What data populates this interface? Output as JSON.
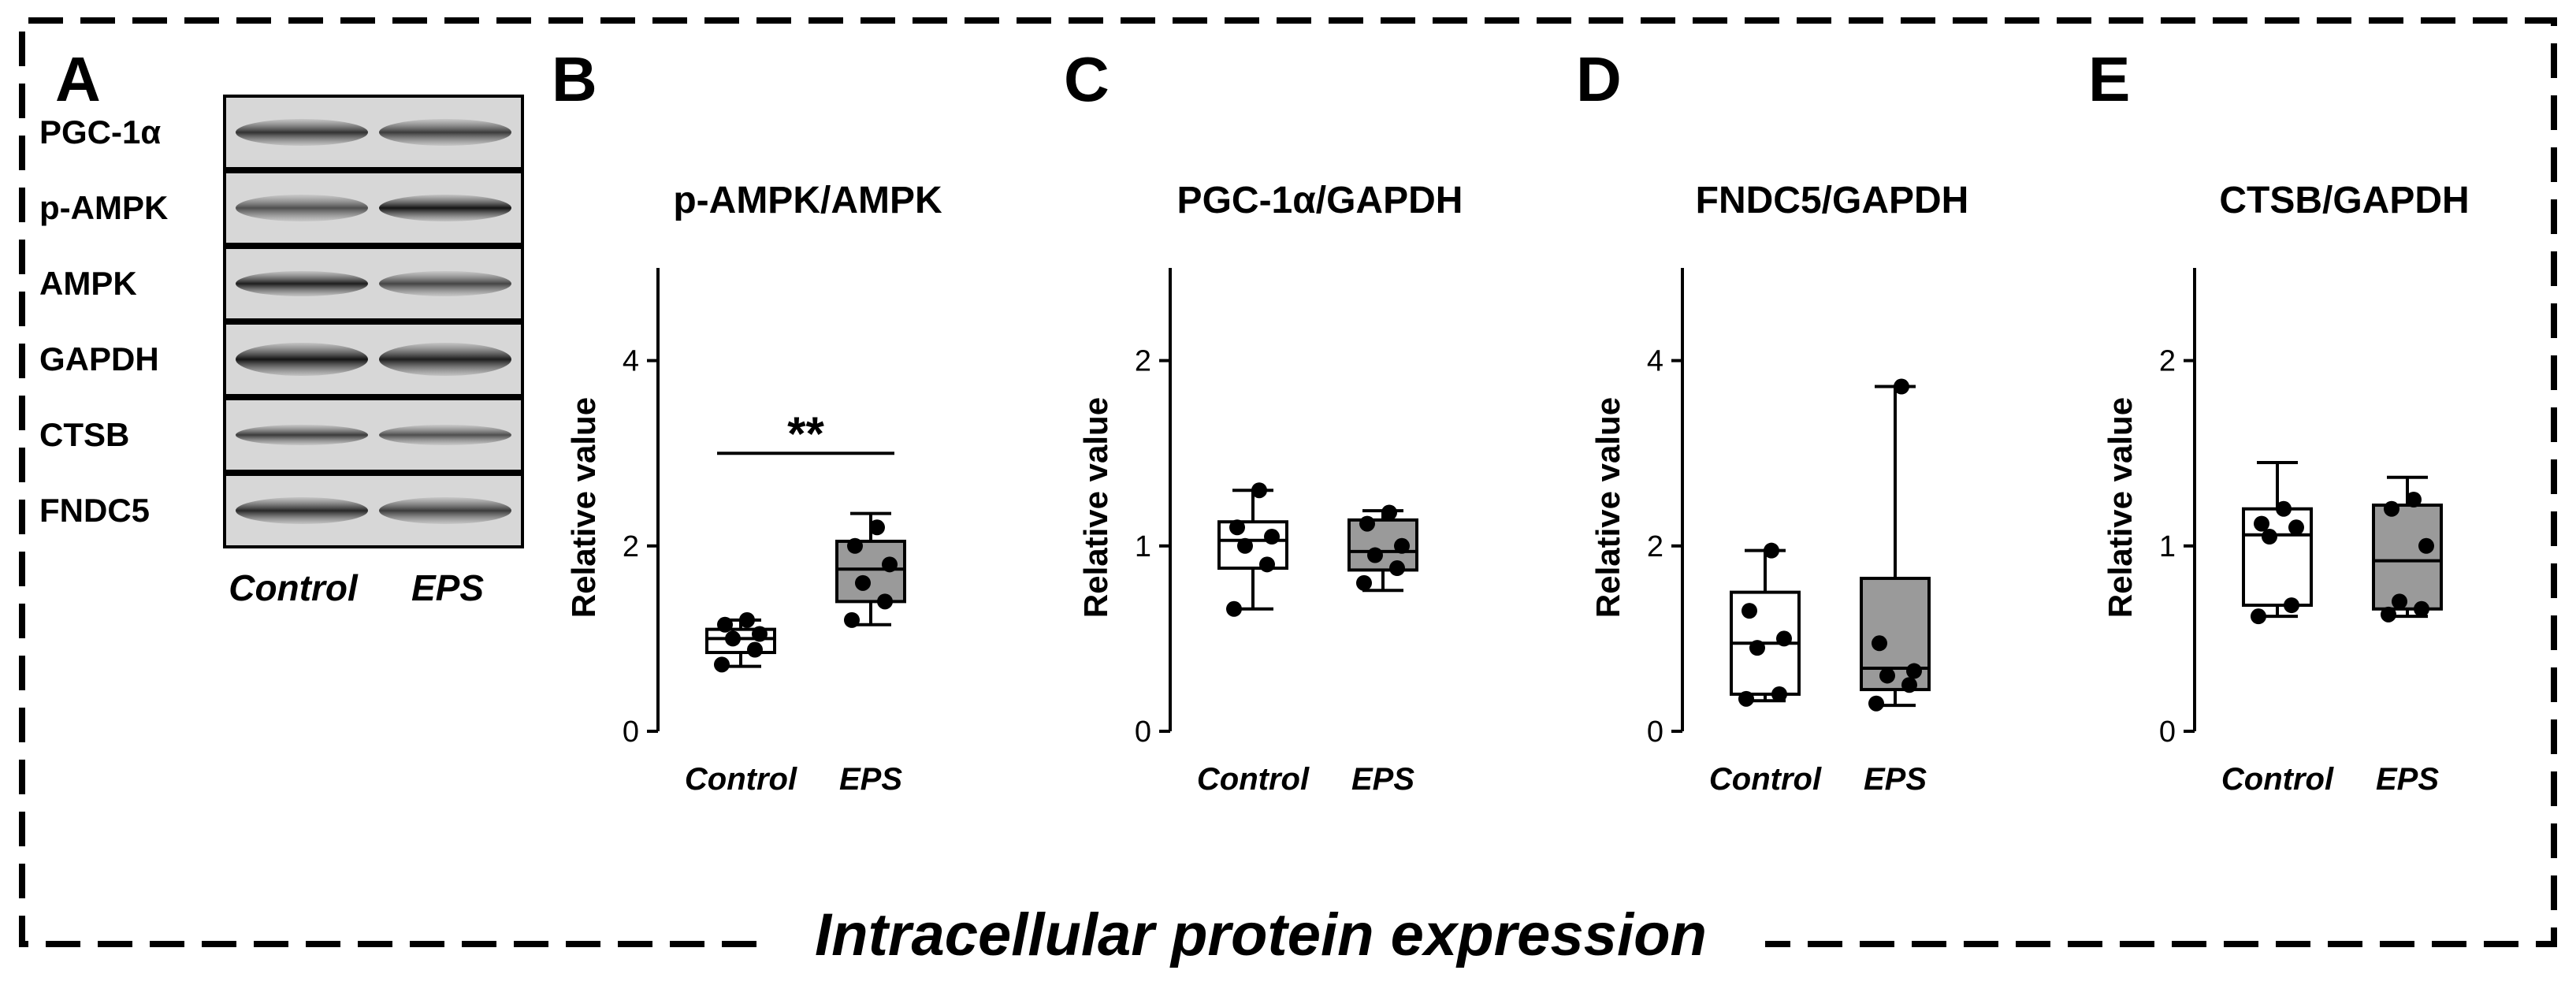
{
  "figure_caption": "Intracellular protein expression",
  "blot": {
    "panel_letter": "A",
    "bands": [
      "PGC-1α",
      "p-AMPK",
      "AMPK",
      "GAPDH",
      "CTSB",
      "FNDC5"
    ],
    "lanes": [
      "Control",
      "EPS"
    ]
  },
  "chart_data": [
    {
      "type": "box",
      "panel_letter": "B",
      "title": "p-AMPK/AMPK",
      "ylabel": "Relative value",
      "ylim": [
        0,
        5
      ],
      "yticks": [
        "0",
        "2",
        "4"
      ],
      "categories": [
        "Control",
        "EPS"
      ],
      "significance": "**",
      "grid": false,
      "series": [
        {
          "name": "Control",
          "color": "#ffffff",
          "min": 0.7,
          "q1": 0.85,
          "median": 1.0,
          "q3": 1.1,
          "max": 1.2,
          "points": [
            0.72,
            0.88,
            1.0,
            1.05,
            1.15,
            1.2
          ]
        },
        {
          "name": "EPS",
          "color": "#9a9a9a",
          "min": 1.15,
          "q1": 1.4,
          "median": 1.75,
          "q3": 2.05,
          "max": 2.35,
          "points": [
            1.2,
            1.4,
            1.6,
            1.8,
            2.0,
            2.2
          ]
        }
      ]
    },
    {
      "type": "box",
      "panel_letter": "C",
      "title": "PGC-1α/GAPDH",
      "ylabel": "Relative value",
      "ylim": [
        0,
        2.5
      ],
      "yticks": [
        "0",
        "1",
        "2"
      ],
      "categories": [
        "Control",
        "EPS"
      ],
      "grid": false,
      "series": [
        {
          "name": "Control",
          "color": "#ffffff",
          "min": 0.66,
          "q1": 0.88,
          "median": 1.03,
          "q3": 1.13,
          "max": 1.3,
          "points": [
            0.66,
            0.9,
            1.0,
            1.05,
            1.1,
            1.3
          ]
        },
        {
          "name": "EPS",
          "color": "#9a9a9a",
          "min": 0.76,
          "q1": 0.87,
          "median": 0.97,
          "q3": 1.14,
          "max": 1.19,
          "points": [
            0.8,
            0.88,
            0.95,
            1.0,
            1.12,
            1.18
          ]
        }
      ]
    },
    {
      "type": "box",
      "panel_letter": "D",
      "title": "FNDC5/GAPDH",
      "ylabel": "Relative value",
      "ylim": [
        0,
        5
      ],
      "yticks": [
        "0",
        "2",
        "4"
      ],
      "categories": [
        "Control",
        "EPS"
      ],
      "grid": false,
      "series": [
        {
          "name": "Control",
          "color": "#ffffff",
          "min": 0.33,
          "q1": 0.4,
          "median": 0.95,
          "q3": 1.5,
          "max": 1.95,
          "points": [
            0.35,
            0.4,
            0.9,
            1.0,
            1.3,
            1.95
          ]
        },
        {
          "name": "EPS",
          "color": "#9a9a9a",
          "min": 0.28,
          "q1": 0.45,
          "median": 0.68,
          "q3": 1.65,
          "max": 3.72,
          "points": [
            0.3,
            0.5,
            0.6,
            0.65,
            0.95,
            3.72
          ]
        }
      ]
    },
    {
      "type": "box",
      "panel_letter": "E",
      "title": "CTSB/GAPDH",
      "ylabel": "Relative value",
      "ylim": [
        0,
        2.5
      ],
      "yticks": [
        "0",
        "1",
        "2"
      ],
      "categories": [
        "Control",
        "EPS"
      ],
      "grid": false,
      "series": [
        {
          "name": "Control",
          "color": "#ffffff",
          "min": 0.62,
          "q1": 0.68,
          "median": 1.06,
          "q3": 1.2,
          "max": 1.45,
          "points": [
            0.62,
            0.68,
            1.05,
            1.1,
            1.12,
            1.2
          ]
        },
        {
          "name": "EPS",
          "color": "#9a9a9a",
          "min": 0.62,
          "q1": 0.66,
          "median": 0.92,
          "q3": 1.22,
          "max": 1.37,
          "points": [
            0.63,
            0.66,
            0.7,
            1.0,
            1.2,
            1.25
          ]
        }
      ]
    }
  ]
}
